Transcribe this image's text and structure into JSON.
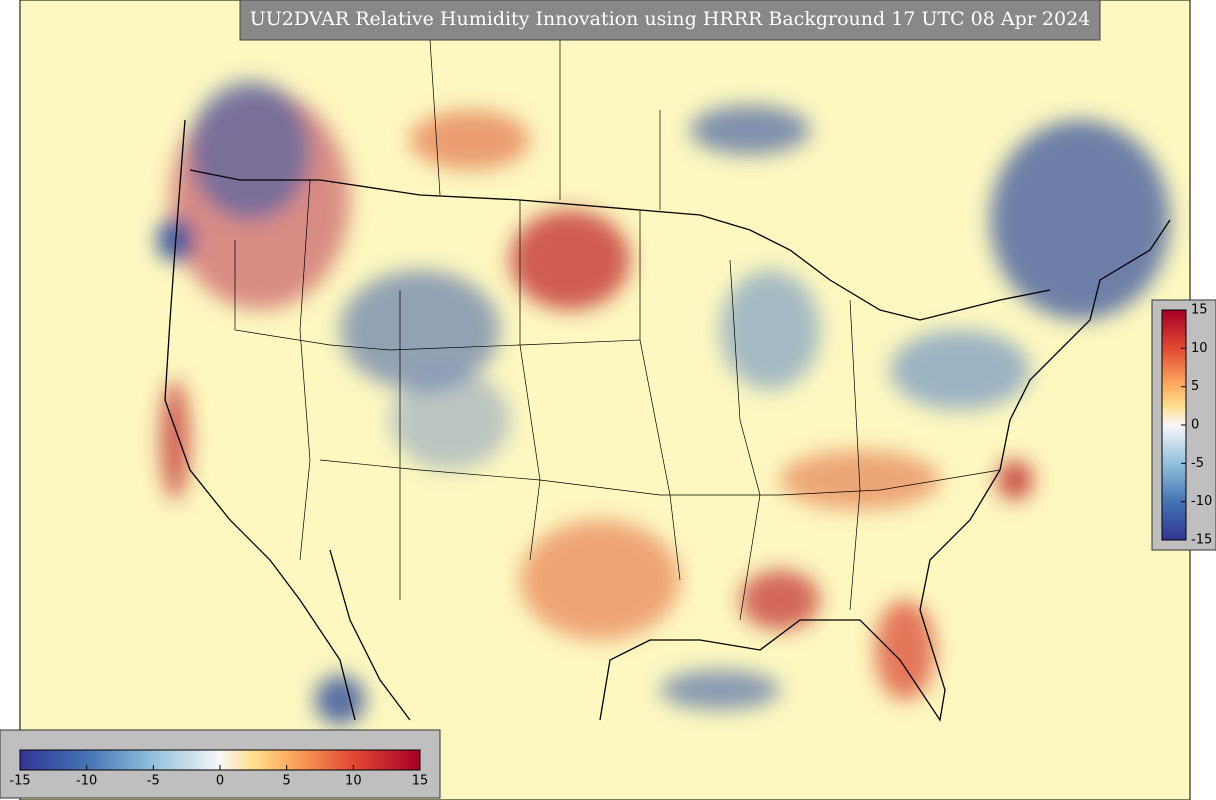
{
  "title": "UU2DVAR Relative Humidity Innovation using HRRR Background 17 UTC 08 Apr 2024",
  "colorbar_horizontal": {
    "range": [
      -15,
      15
    ],
    "ticks": [
      -15,
      -10,
      -5,
      0,
      5,
      10,
      15
    ]
  },
  "colorbar_vertical": {
    "range": [
      -15,
      15
    ],
    "ticks": [
      -15,
      -10,
      -5,
      0,
      5,
      10,
      15
    ]
  }
}
